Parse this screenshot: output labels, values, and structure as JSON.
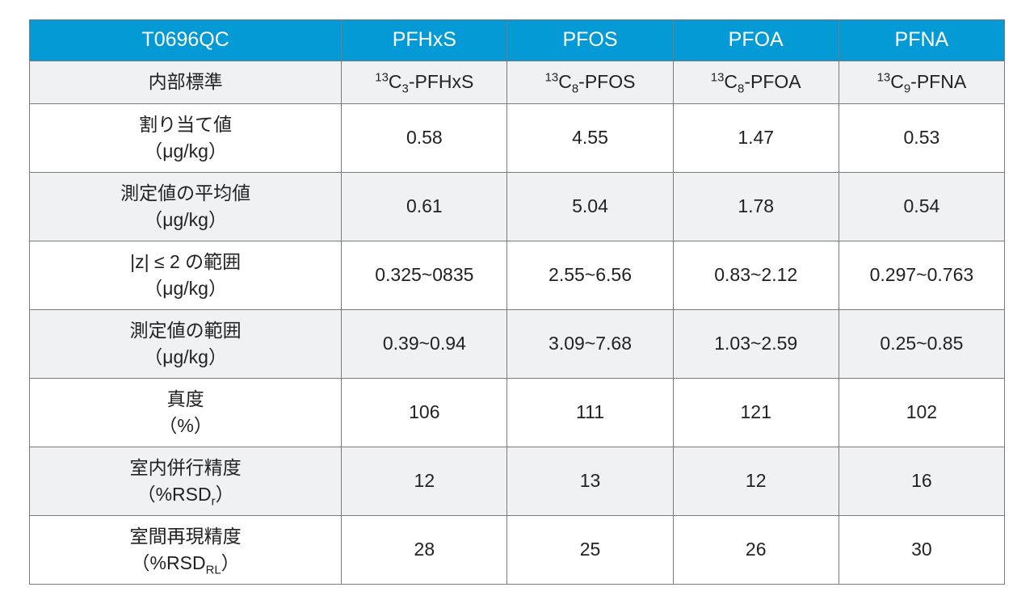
{
  "table": {
    "header_bg": "#049ad5",
    "header_fg": "#ffffff",
    "alt_row_bg": "#eff1f3",
    "border_color": "#7a7a7a",
    "columns": [
      "T0696QC",
      "PFHxS",
      "PFOS",
      "PFOA",
      "PFNA"
    ],
    "col_widths_pct": [
      32,
      17,
      17,
      17,
      17
    ],
    "rows": [
      {
        "label": "内部標準",
        "unit": "",
        "values_iso": [
          {
            "sup": "13",
            "pre": "C",
            "sub": "3",
            "suf": "-PFHxS"
          },
          {
            "sup": "13",
            "pre": "C",
            "sub": "8",
            "suf": "-PFOS"
          },
          {
            "sup": "13",
            "pre": "C",
            "sub": "8",
            "suf": "-PFOA"
          },
          {
            "sup": "13",
            "pre": "C",
            "sub": "9",
            "suf": "-PFNA"
          }
        ],
        "alt": true,
        "tall": false
      },
      {
        "label": "割り当て値",
        "unit": "（μg/kg）",
        "values": [
          "0.58",
          "4.55",
          "1.47",
          "0.53"
        ],
        "alt": false,
        "tall": true
      },
      {
        "label": "測定値の平均値",
        "unit": "（μg/kg）",
        "values": [
          "0.61",
          "5.04",
          "1.78",
          "0.54"
        ],
        "alt": true,
        "tall": true
      },
      {
        "label": "|z| ≤ 2 の範囲",
        "unit": "（μg/kg）",
        "values": [
          "0.325~0835",
          "2.55~6.56",
          "0.83~2.12",
          "0.297~0.763"
        ],
        "alt": false,
        "tall": true
      },
      {
        "label": "測定値の範囲",
        "unit": "（μg/kg）",
        "values": [
          "0.39~0.94",
          "3.09~7.68",
          "1.03~2.59",
          "0.25~0.85"
        ],
        "alt": true,
        "tall": true
      },
      {
        "label": "真度",
        "unit": "（%）",
        "values": [
          "106",
          "111",
          "121",
          "102"
        ],
        "alt": false,
        "tall": true
      },
      {
        "label_rsd": {
          "pre": "室内併行精度",
          "unit_pre": "（%RSD",
          "sub": "r",
          "unit_post": "）"
        },
        "values": [
          "12",
          "13",
          "12",
          "16"
        ],
        "alt": true,
        "tall": true
      },
      {
        "label_rsd": {
          "pre": "室間再現精度",
          "unit_pre": "（%RSD",
          "sub": "RL",
          "unit_post": "）"
        },
        "values": [
          "28",
          "25",
          "26",
          "30"
        ],
        "alt": false,
        "tall": true
      }
    ]
  }
}
